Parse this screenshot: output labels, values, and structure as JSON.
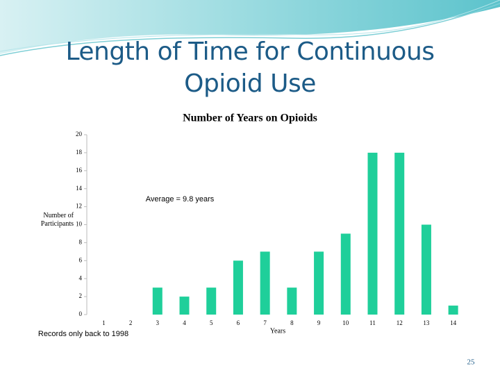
{
  "title": "Length of Time for Continuous  Opioid Use",
  "page_number": "25",
  "chart_data": {
    "type": "bar",
    "title": "Number of Years on Opioids",
    "y_label": "Number of Participants",
    "x_label": "Years",
    "annotation": "Average = 9.8 years",
    "note": "Records only back to 1998",
    "categories": [
      "1",
      "2",
      "3",
      "4",
      "5",
      "6",
      "7",
      "8",
      "9",
      "10",
      "11",
      "12",
      "13",
      "14"
    ],
    "values": [
      0,
      0,
      3,
      2,
      3,
      6,
      7,
      3,
      7,
      9,
      18,
      18,
      10,
      1
    ],
    "color": "#1fcf9a",
    "ylim": [
      0,
      20
    ],
    "yticks": [
      0,
      2,
      4,
      6,
      8,
      10,
      12,
      14,
      16,
      18,
      20
    ],
    "grid": false
  }
}
